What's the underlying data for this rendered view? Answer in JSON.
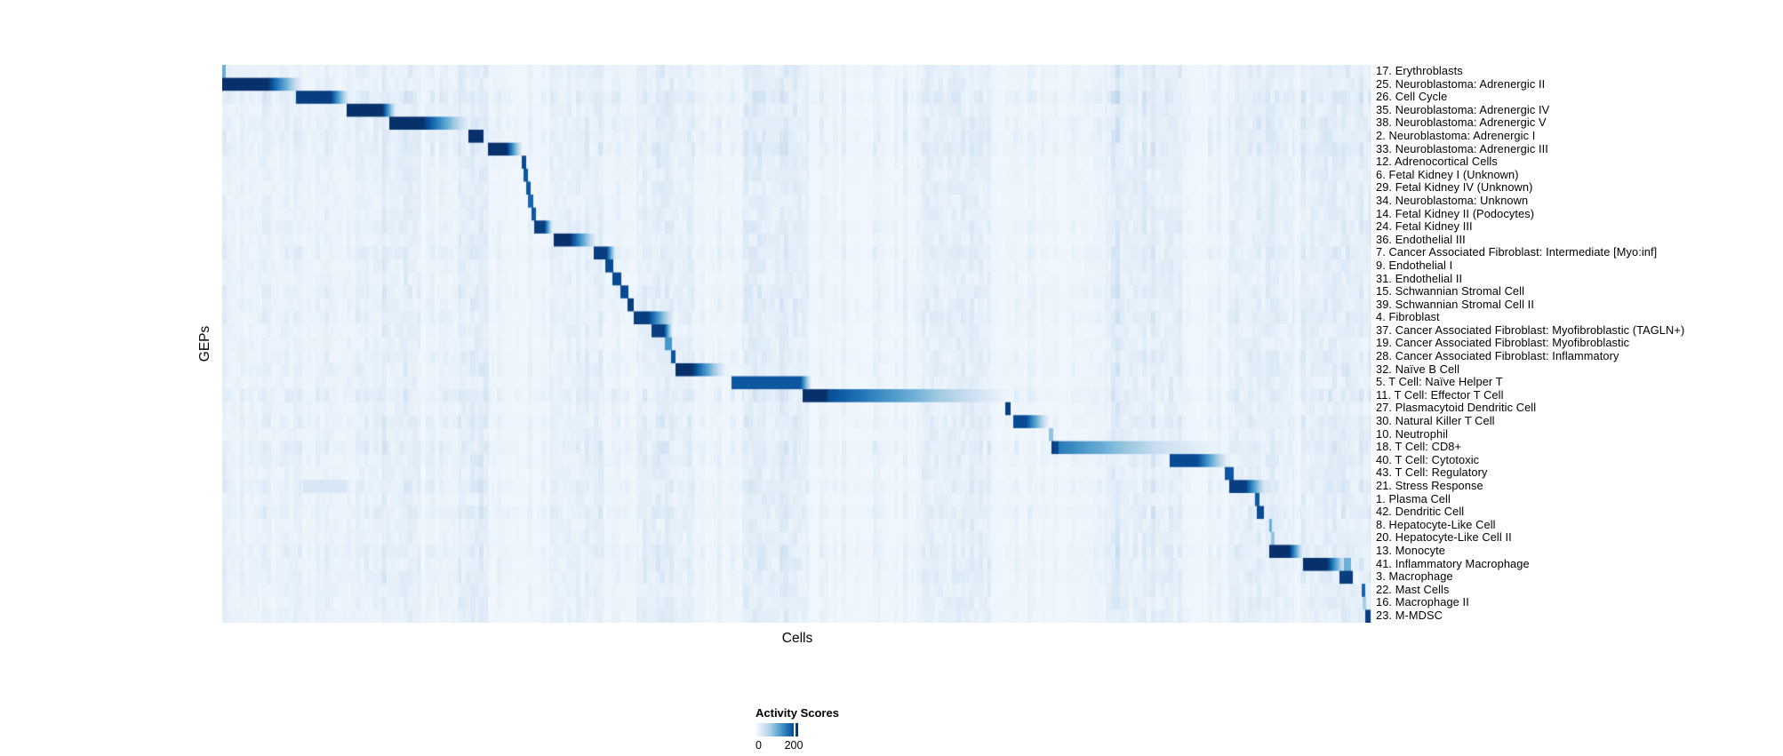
{
  "chart_data": {
    "type": "heatmap",
    "xlabel": "Cells",
    "ylabel": "GEPs",
    "colormap": "Blues",
    "value_range": [
      0,
      220
    ],
    "grid": false,
    "legend_position": "bottom-center",
    "colorbar": {
      "title": "Activity Scores",
      "tick_labels": [
        "0",
        "200"
      ],
      "tick_values": [
        0,
        200
      ],
      "tick_positions": [
        0.02,
        0.9
      ]
    },
    "n_rows": 43,
    "rows": [
      {
        "label": "17. Erythroblasts",
        "segments": [
          [
            0.0,
            0.003,
            0.5,
            0.5
          ]
        ]
      },
      {
        "label": "25. Neuroblastoma: Adrenergic II",
        "segments": [
          [
            0.0,
            0.039,
            1,
            1
          ],
          [
            0.039,
            0.07,
            1,
            0.05
          ]
        ]
      },
      {
        "label": "26. Cell Cycle",
        "segments": [
          [
            0.064,
            0.094,
            0.95,
            0.95
          ],
          [
            0.094,
            0.11,
            0.95,
            0.08
          ]
        ]
      },
      {
        "label": "35. Neuroblastoma: Adrenergic IV",
        "segments": [
          [
            0.108,
            0.139,
            1,
            1
          ],
          [
            0.139,
            0.151,
            1,
            0.08
          ]
        ]
      },
      {
        "label": "38. Neuroblastoma: Adrenergic V",
        "segments": [
          [
            0.145,
            0.174,
            1,
            1
          ],
          [
            0.174,
            0.214,
            1,
            0.08
          ],
          [
            0.214,
            0.259,
            0.08,
            0.04
          ]
        ]
      },
      {
        "label": "2. Neuroblastoma: Adrenergic I",
        "segments": [
          [
            0.214,
            0.227,
            1,
            1
          ]
        ]
      },
      {
        "label": "33. Neuroblastoma: Adrenergic III",
        "segments": [
          [
            0.231,
            0.247,
            1,
            1
          ],
          [
            0.247,
            0.261,
            1,
            0.05
          ]
        ]
      },
      {
        "label": "12. Adrenocortical Cells",
        "segments": [
          [
            0.26,
            0.264,
            0.9,
            0.9
          ]
        ]
      },
      {
        "label": "6. Fetal Kidney I (Unknown)",
        "segments": [
          [
            0.262,
            0.266,
            0.85,
            0.85
          ]
        ]
      },
      {
        "label": "29. Fetal Kidney IV (Unknown)",
        "segments": [
          [
            0.264,
            0.268,
            0.85,
            0.85
          ]
        ]
      },
      {
        "label": "34. Neuroblastoma: Unknown",
        "segments": [
          [
            0.266,
            0.27,
            0.8,
            0.8
          ]
        ]
      },
      {
        "label": "14. Fetal Kidney II (Podocytes)",
        "segments": [
          [
            0.269,
            0.273,
            0.85,
            0.85
          ]
        ]
      },
      {
        "label": "24. Fetal Kidney III",
        "segments": [
          [
            0.271,
            0.28,
            0.95,
            0.95
          ],
          [
            0.28,
            0.287,
            0.95,
            0.1
          ]
        ]
      },
      {
        "label": "36. Endothelial III",
        "segments": [
          [
            0.288,
            0.302,
            1,
            1
          ],
          [
            0.302,
            0.325,
            1,
            0.08
          ]
        ]
      },
      {
        "label": "7. Cancer Associated Fibroblast: Intermediate [Myo:inf]",
        "segments": [
          [
            0.323,
            0.334,
            0.95,
            0.95
          ],
          [
            0.334,
            0.342,
            0.95,
            0.1
          ]
        ]
      },
      {
        "label": "9. Endothelial I",
        "segments": [
          [
            0.333,
            0.34,
            0.9,
            0.9
          ]
        ]
      },
      {
        "label": "31. Endothelial II",
        "segments": [
          [
            0.339,
            0.347,
            0.9,
            0.9
          ]
        ]
      },
      {
        "label": "15. Schwannian Stromal Cell",
        "segments": [
          [
            0.346,
            0.353,
            0.9,
            0.9
          ]
        ]
      },
      {
        "label": "39. Schwannian Stromal Cell II",
        "segments": [
          [
            0.352,
            0.358,
            0.95,
            0.95
          ]
        ]
      },
      {
        "label": "4. Fibroblast",
        "segments": [
          [
            0.358,
            0.37,
            0.95,
            0.95
          ],
          [
            0.37,
            0.392,
            0.95,
            0.1
          ]
        ]
      },
      {
        "label": "37. Cancer Associated Fibroblast: Myofibroblastic (TAGLN+)",
        "segments": [
          [
            0.373,
            0.384,
            0.95,
            0.95
          ],
          [
            0.384,
            0.391,
            0.95,
            0.15
          ]
        ]
      },
      {
        "label": "19. Cancer Associated Fibroblast: Myofibroblastic",
        "segments": [
          [
            0.385,
            0.391,
            0.6,
            0.6
          ]
        ]
      },
      {
        "label": "28. Cancer Associated Fibroblast: Inflammatory",
        "segments": [
          [
            0.39,
            0.394,
            0.85,
            0.85
          ]
        ]
      },
      {
        "label": "32. Naïve B Cell",
        "segments": [
          [
            0.394,
            0.408,
            1,
            1
          ],
          [
            0.408,
            0.437,
            1,
            0.08
          ]
        ]
      },
      {
        "label": "5. T Cell: Naïve Helper T",
        "segments": [
          [
            0.443,
            0.503,
            0.85,
            0.85
          ],
          [
            0.503,
            0.512,
            0.85,
            0.1
          ]
        ]
      },
      {
        "label": "11. T Cell: Effector T Cell",
        "segments": [
          [
            0.505,
            0.526,
            1,
            1
          ],
          [
            0.526,
            0.684,
            0.9,
            0.04
          ]
        ]
      },
      {
        "label": "27. Plasmacytoid Dendritic Cell",
        "segments": [
          [
            0.681,
            0.686,
            0.95,
            0.95
          ]
        ]
      },
      {
        "label": "30. Natural Killer T Cell",
        "segments": [
          [
            0.688,
            0.699,
            0.9,
            0.9
          ],
          [
            0.699,
            0.718,
            0.9,
            0.1
          ]
        ]
      },
      {
        "label": "10. Neutrophil",
        "segments": [
          [
            0.719,
            0.723,
            0.4,
            0.4
          ]
        ]
      },
      {
        "label": "18. T Cell: CD8+",
        "segments": [
          [
            0.721,
            0.727,
            0.95,
            0.9
          ],
          [
            0.727,
            0.82,
            0.72,
            0.2
          ],
          [
            0.82,
            0.87,
            0.2,
            0.04
          ]
        ]
      },
      {
        "label": "40. T Cell: Cytotoxic",
        "segments": [
          [
            0.824,
            0.848,
            0.9,
            0.9
          ],
          [
            0.848,
            0.874,
            0.9,
            0.1
          ]
        ]
      },
      {
        "label": "43. T Cell: Regulatory",
        "segments": [
          [
            0.872,
            0.88,
            0.85,
            0.85
          ]
        ]
      },
      {
        "label": "21. Stress Response",
        "segments": [
          [
            0.07,
            0.108,
            0.16,
            0.16
          ],
          [
            0.876,
            0.89,
            0.95,
            0.95
          ],
          [
            0.89,
            0.908,
            0.95,
            0.08
          ]
        ]
      },
      {
        "label": "1. Plasma Cell",
        "segments": [
          [
            0.898,
            0.902,
            0.85,
            0.85
          ]
        ]
      },
      {
        "label": "42. Dendritic Cell",
        "segments": [
          [
            0.9,
            0.906,
            0.9,
            0.9
          ]
        ]
      },
      {
        "label": "8. Hepatocyte-Like Cell",
        "segments": [
          [
            0.911,
            0.913,
            0.5,
            0.5
          ]
        ]
      },
      {
        "label": "20. Hepatocyte-Like Cell II",
        "segments": [
          [
            0.912,
            0.915,
            0.4,
            0.4
          ]
        ]
      },
      {
        "label": "13. Monocyte",
        "segments": [
          [
            0.911,
            0.928,
            1,
            1
          ],
          [
            0.928,
            0.94,
            1,
            0.1
          ]
        ]
      },
      {
        "label": "41. Inflammatory Macrophage",
        "segments": [
          [
            0.94,
            0.961,
            1,
            1
          ],
          [
            0.961,
            0.976,
            1,
            0.15
          ],
          [
            0.976,
            0.982,
            0.5,
            0.5
          ]
        ]
      },
      {
        "label": "3. Macrophage",
        "segments": [
          [
            0.972,
            0.983,
            0.95,
            0.95
          ]
        ]
      },
      {
        "label": "22. Mast Cells",
        "segments": [
          [
            0.991,
            0.994,
            0.8,
            0.8
          ]
        ]
      },
      {
        "label": "16. Macrophage II",
        "segments": [
          [
            0.992,
            0.995,
            0.35,
            0.35
          ]
        ]
      },
      {
        "label": "23. M-MDSC",
        "segments": [
          [
            0.994,
            0.999,
            0.95,
            0.95
          ]
        ]
      }
    ],
    "column_bands": [
      [
        0.0,
        0.14,
        0.02
      ],
      [
        0.139,
        0.172,
        0.045
      ],
      [
        0.205,
        0.232,
        0.055
      ],
      [
        0.284,
        0.332,
        0.035
      ],
      [
        0.36,
        0.41,
        0.045
      ],
      [
        0.452,
        0.51,
        0.055
      ],
      [
        0.608,
        0.668,
        0.05
      ],
      [
        0.768,
        0.835,
        0.05
      ],
      [
        0.875,
        0.932,
        0.045
      ],
      [
        0.938,
        1.0,
        0.05
      ]
    ]
  }
}
